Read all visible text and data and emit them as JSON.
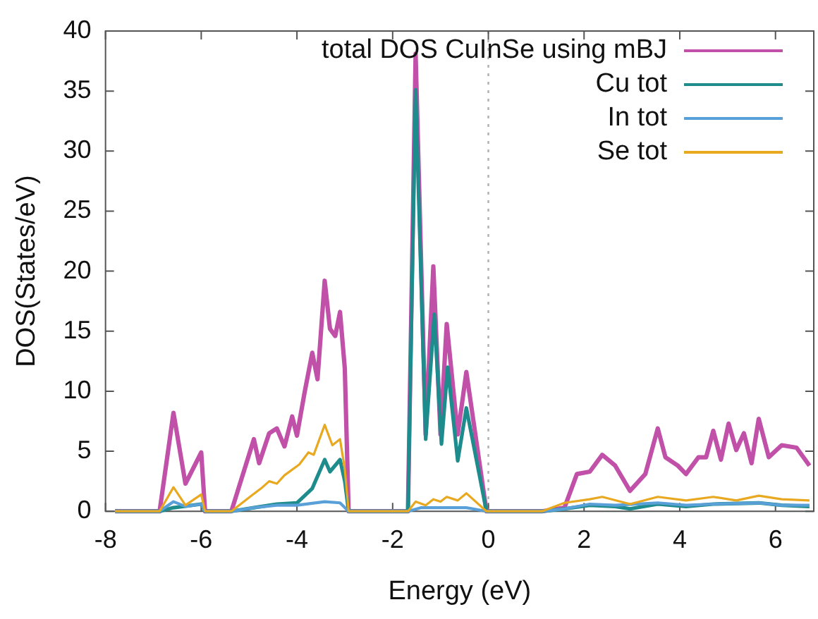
{
  "chart_data": {
    "type": "line",
    "xlabel": "Energy (eV)",
    "ylabel": "DOS(States/eV)",
    "xlim": [
      -8,
      6.8
    ],
    "xticks": [
      -8,
      -6,
      -4,
      -2,
      0,
      2,
      4,
      6
    ],
    "ylim": [
      0,
      40
    ],
    "yticks": [
      0,
      5,
      10,
      15,
      20,
      25,
      30,
      35,
      40
    ],
    "grid": false,
    "legend": "top right",
    "marker": "none",
    "line_style": "solid",
    "ref_lines": [
      {
        "axis": "x",
        "value": 0,
        "color": "#b0b0b0",
        "line_style": "dotted"
      }
    ],
    "series": [
      {
        "name": "total DOS CuInSe using mBJ",
        "color": "#c050a8",
        "x": [
          -7.8,
          -6.87,
          -6.58,
          -6.33,
          -6.0,
          -5.92,
          -5.37,
          -4.9,
          -4.79,
          -4.58,
          -4.42,
          -4.26,
          -4.1,
          -4.0,
          -3.84,
          -3.68,
          -3.57,
          -3.42,
          -3.31,
          -3.2,
          -3.1,
          -3.0,
          -2.92,
          -1.68,
          -1.52,
          -1.31,
          -1.15,
          -1.0,
          -0.87,
          -0.64,
          -0.46,
          -0.04,
          1.12,
          1.59,
          1.85,
          2.12,
          2.38,
          2.65,
          2.96,
          3.28,
          3.54,
          3.7,
          3.96,
          4.13,
          4.39,
          4.55,
          4.7,
          4.86,
          5.02,
          5.18,
          5.34,
          5.5,
          5.65,
          5.86,
          6.13,
          6.44,
          6.71
        ],
        "values": [
          0,
          0,
          8.2,
          2.3,
          4.9,
          0,
          0,
          6.0,
          4.0,
          6.5,
          6.9,
          5.4,
          7.9,
          6.3,
          9.9,
          13.2,
          11.0,
          19.2,
          15.2,
          14.6,
          16.6,
          11.9,
          0,
          0,
          38.1,
          6.4,
          20.4,
          6.4,
          15.6,
          6.4,
          11.6,
          0,
          0,
          0.3,
          3.1,
          3.3,
          4.7,
          3.8,
          1.7,
          3.1,
          6.9,
          4.5,
          3.8,
          3.1,
          4.5,
          4.5,
          6.7,
          4.3,
          7.3,
          5.1,
          6.5,
          4.0,
          7.7,
          4.5,
          5.5,
          5.3,
          3.8
        ]
      },
      {
        "name": "Cu tot",
        "color": "#1e8c8c",
        "x": [
          -7.8,
          -6.87,
          -6.58,
          -6.0,
          -5.92,
          -5.37,
          -4.9,
          -4.42,
          -4.0,
          -3.84,
          -3.68,
          -3.42,
          -3.31,
          -3.1,
          -3.0,
          -2.92,
          -1.68,
          -1.52,
          -1.31,
          -1.13,
          -0.98,
          -0.85,
          -0.64,
          -0.46,
          -0.04,
          1.12,
          1.59,
          2.12,
          2.65,
          2.96,
          3.54,
          4.13,
          4.7,
          5.65,
          6.13,
          6.71
        ],
        "values": [
          0,
          0,
          0.3,
          0.6,
          0,
          0,
          0.3,
          0.6,
          0.7,
          1.3,
          1.9,
          4.3,
          3.3,
          4.3,
          2.5,
          0,
          0,
          35.1,
          6.0,
          16.4,
          5.6,
          12.0,
          4.2,
          8.6,
          0,
          0,
          0.2,
          0.5,
          0.4,
          0.2,
          0.6,
          0.4,
          0.6,
          0.7,
          0.5,
          0.4
        ]
      },
      {
        "name": "In tot",
        "color": "#5aa0d8",
        "x": [
          -7.8,
          -6.87,
          -6.58,
          -6.33,
          -6.0,
          -5.92,
          -5.37,
          -4.9,
          -4.42,
          -4.0,
          -3.42,
          -3.1,
          -2.92,
          -1.68,
          -1.4,
          -0.46,
          -0.04,
          1.12,
          1.59,
          2.12,
          2.65,
          3.54,
          4.13,
          4.7,
          5.65,
          6.13,
          6.71
        ],
        "values": [
          0,
          0,
          0.8,
          0.4,
          0.6,
          0,
          0,
          0.3,
          0.5,
          0.5,
          0.8,
          0.7,
          0,
          0,
          0.3,
          0.3,
          0,
          0,
          0.2,
          0.6,
          0.5,
          0.7,
          0.5,
          0.6,
          0.7,
          0.5,
          0.5
        ]
      },
      {
        "name": "Se tot",
        "color": "#e8a820",
        "x": [
          -7.8,
          -6.87,
          -6.58,
          -6.33,
          -6.0,
          -5.92,
          -5.37,
          -4.95,
          -4.75,
          -4.58,
          -4.42,
          -4.26,
          -3.95,
          -3.76,
          -3.65,
          -3.42,
          -3.26,
          -3.1,
          -3.0,
          -2.92,
          -1.68,
          -1.52,
          -1.31,
          -1.15,
          -1.0,
          -0.87,
          -0.64,
          -0.46,
          -0.04,
          1.12,
          1.59,
          2.12,
          2.38,
          2.96,
          3.54,
          4.13,
          4.7,
          5.18,
          5.65,
          6.13,
          6.71
        ],
        "values": [
          0,
          0,
          2.0,
          0.5,
          1.4,
          0,
          0,
          1.3,
          1.9,
          2.5,
          2.3,
          3.0,
          3.9,
          4.9,
          4.7,
          7.2,
          5.5,
          6.0,
          3.5,
          0,
          0,
          0.8,
          0.5,
          1.0,
          0.8,
          1.2,
          0.9,
          1.5,
          0,
          0,
          0.7,
          1.0,
          1.2,
          0.6,
          1.2,
          0.9,
          1.2,
          0.9,
          1.3,
          1.0,
          0.9
        ]
      }
    ]
  }
}
